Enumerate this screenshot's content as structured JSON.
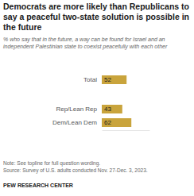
{
  "chart_data": {
    "type": "bar",
    "orientation": "horizontal",
    "title": "Democrats are more likely than Republicans to say a peaceful two-state solution is possible in the future",
    "subtitle": "% who say that in the future, a way can be found for Israel and an independent Palestinian state to coexist peacefully with each other",
    "categories": [
      "Total",
      "Rep/Lean Rep",
      "Dem/Lean Dem"
    ],
    "values": [
      52,
      43,
      62
    ],
    "color": "#c9a43c",
    "xlim": [
      0,
      100
    ],
    "data_labels": true,
    "tick_labels": "y",
    "grid": false,
    "note": "Note: See topline for full question wording.",
    "source": "Source: Survey of U.S. adults conducted Nov. 27-Dec. 3, 2023.",
    "credit": "PEW RESEARCH CENTER"
  }
}
